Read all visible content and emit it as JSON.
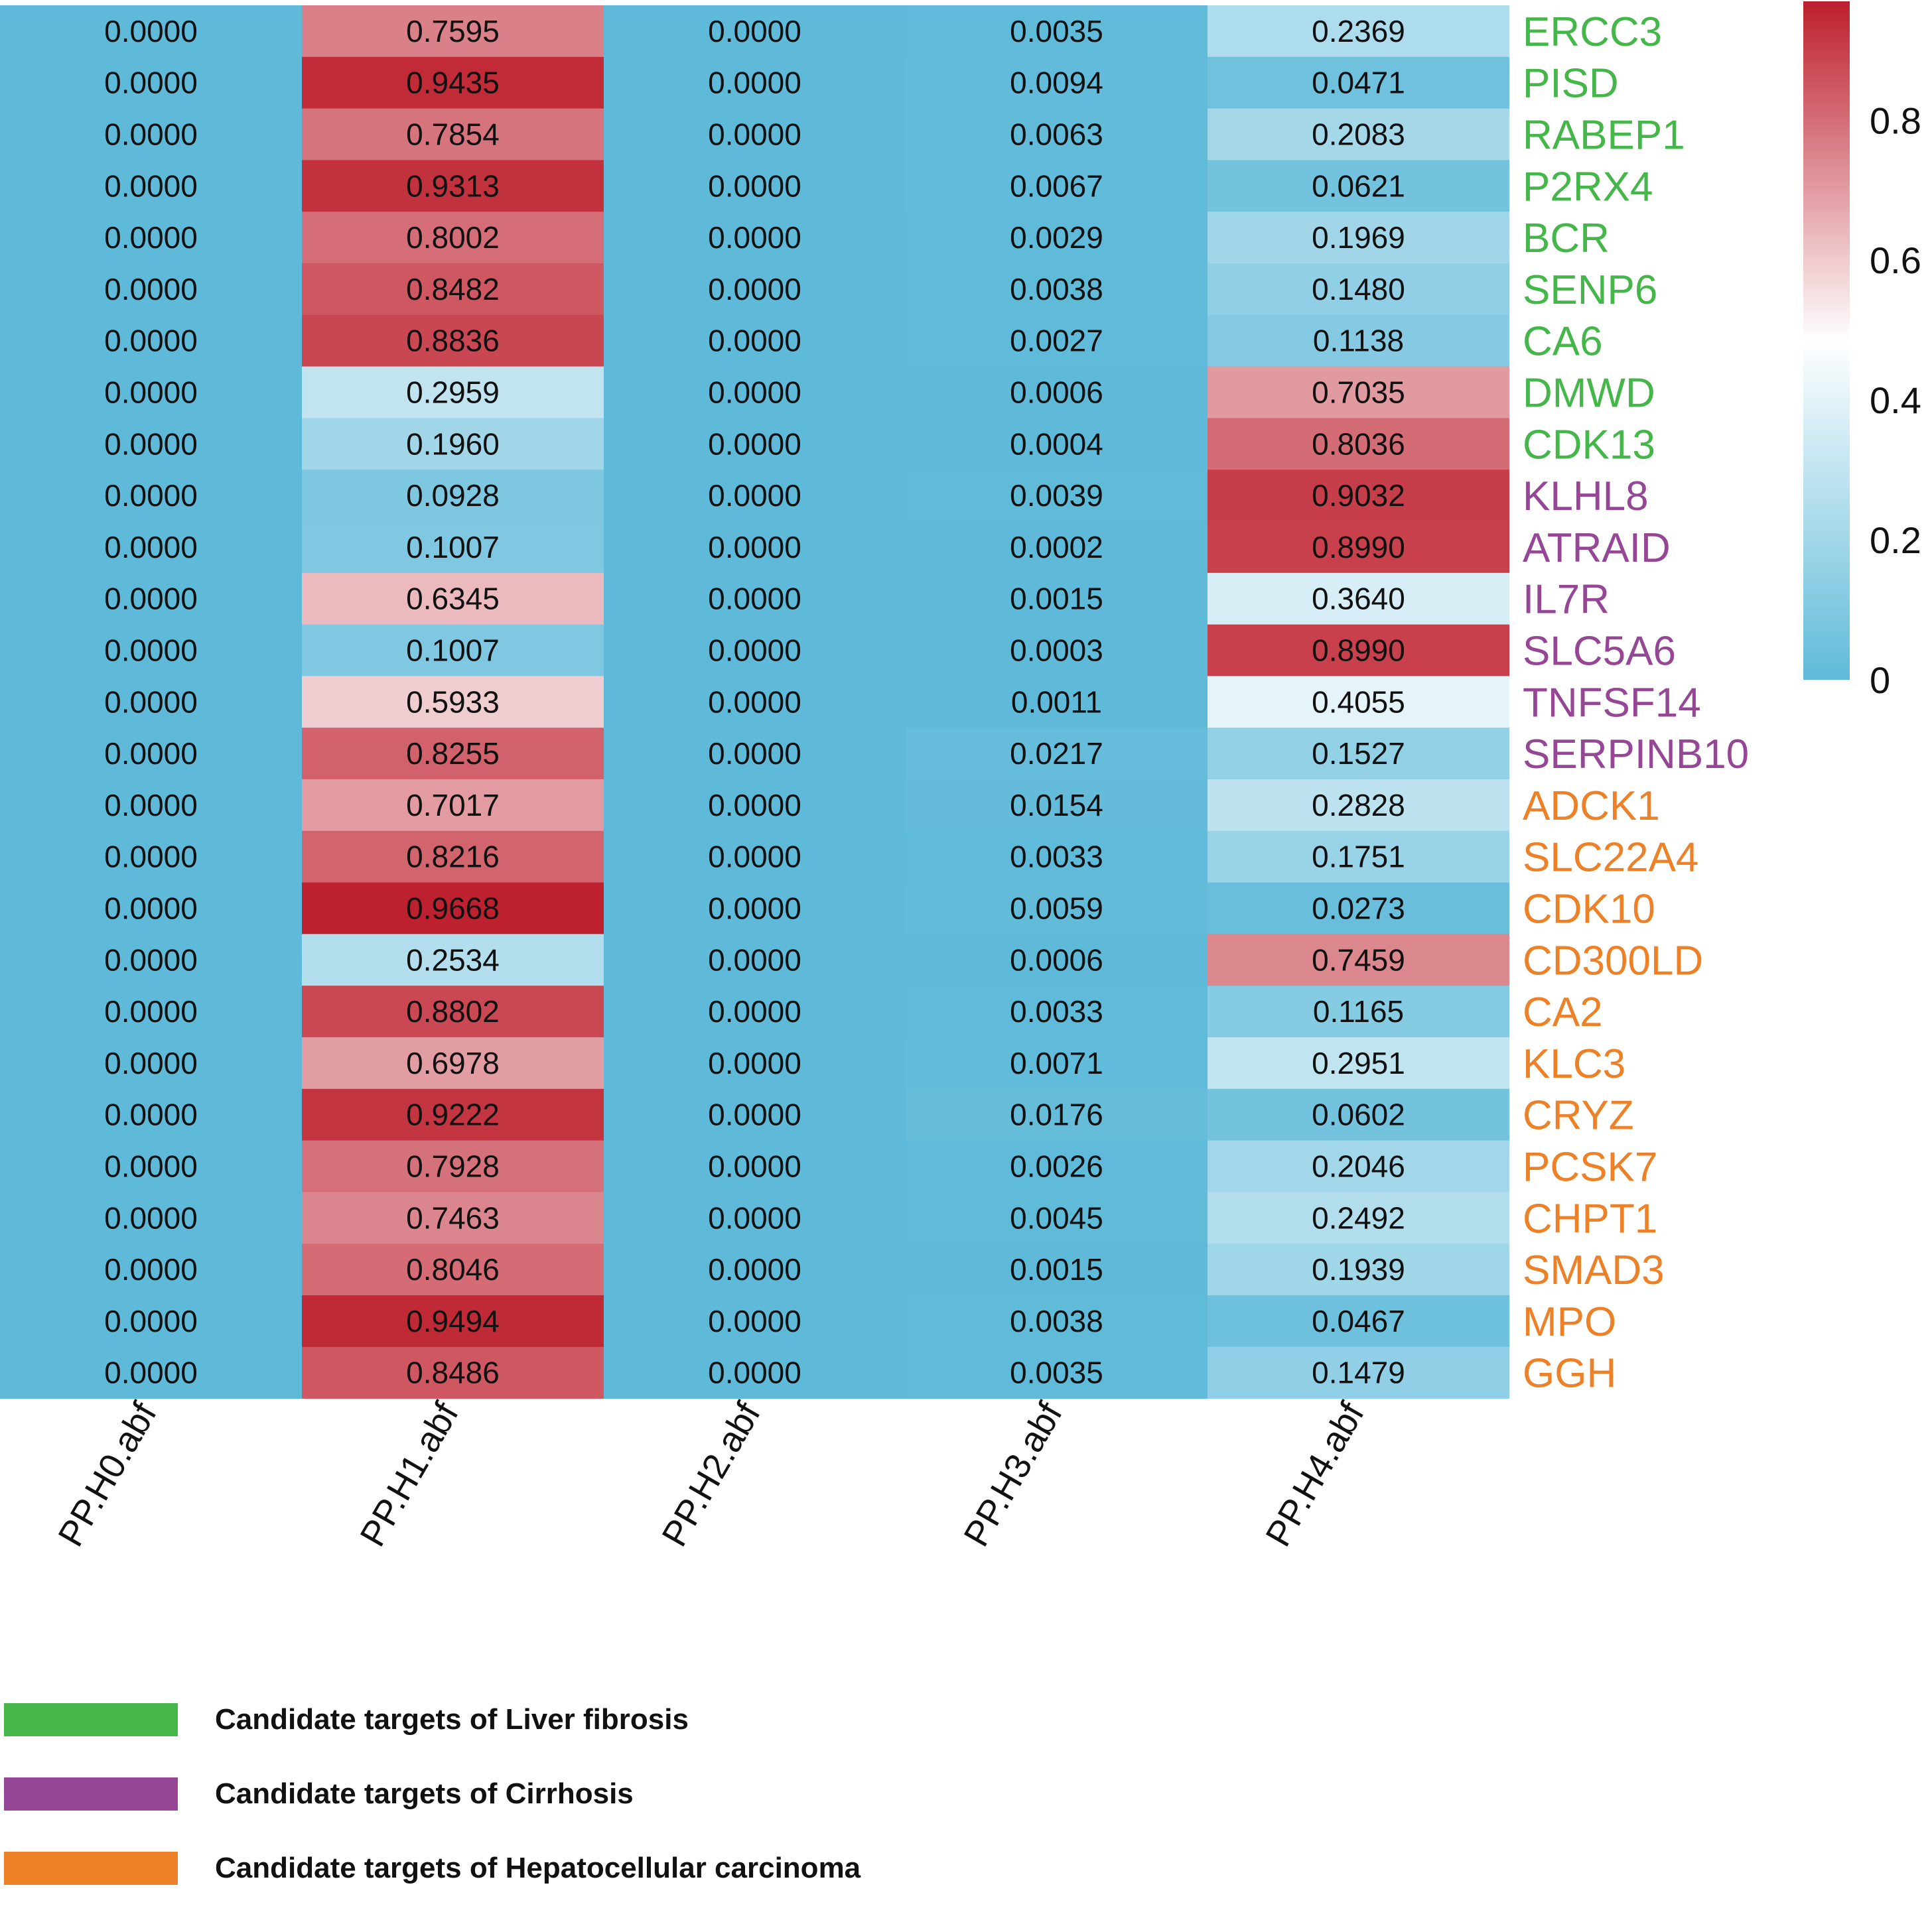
{
  "chart_data": {
    "type": "heatmap",
    "title": "",
    "xlabel": "",
    "ylabel": "",
    "columns": [
      "PP.H0.abf",
      "PP.H1.abf",
      "PP.H2.abf",
      "PP.H3.abf",
      "PP.H4.abf"
    ],
    "rows": [
      {
        "gene": "ERCC3",
        "group": "liver_fibrosis",
        "values": [
          0.0,
          0.7595,
          0.0,
          0.0035,
          0.2369
        ]
      },
      {
        "gene": "PISD",
        "group": "liver_fibrosis",
        "values": [
          0.0,
          0.9435,
          0.0,
          0.0094,
          0.0471
        ]
      },
      {
        "gene": "RABEP1",
        "group": "liver_fibrosis",
        "values": [
          0.0,
          0.7854,
          0.0,
          0.0063,
          0.2083
        ]
      },
      {
        "gene": "P2RX4",
        "group": "liver_fibrosis",
        "values": [
          0.0,
          0.9313,
          0.0,
          0.0067,
          0.0621
        ]
      },
      {
        "gene": "BCR",
        "group": "liver_fibrosis",
        "values": [
          0.0,
          0.8002,
          0.0,
          0.0029,
          0.1969
        ]
      },
      {
        "gene": "SENP6",
        "group": "liver_fibrosis",
        "values": [
          0.0,
          0.8482,
          0.0,
          0.0038,
          0.148
        ]
      },
      {
        "gene": "CA6",
        "group": "liver_fibrosis",
        "values": [
          0.0,
          0.8836,
          0.0,
          0.0027,
          0.1138
        ]
      },
      {
        "gene": "DMWD",
        "group": "liver_fibrosis",
        "values": [
          0.0,
          0.2959,
          0.0,
          0.0006,
          0.7035
        ]
      },
      {
        "gene": "CDK13",
        "group": "liver_fibrosis",
        "values": [
          0.0,
          0.196,
          0.0,
          0.0004,
          0.8036
        ]
      },
      {
        "gene": "KLHL8",
        "group": "cirrhosis",
        "values": [
          0.0,
          0.0928,
          0.0,
          0.0039,
          0.9032
        ]
      },
      {
        "gene": "ATRAID",
        "group": "cirrhosis",
        "values": [
          0.0,
          0.1007,
          0.0,
          0.0002,
          0.899
        ]
      },
      {
        "gene": "IL7R",
        "group": "cirrhosis",
        "values": [
          0.0,
          0.6345,
          0.0,
          0.0015,
          0.364
        ]
      },
      {
        "gene": "SLC5A6",
        "group": "cirrhosis",
        "values": [
          0.0,
          0.1007,
          0.0,
          0.0003,
          0.899
        ]
      },
      {
        "gene": "TNFSF14",
        "group": "cirrhosis",
        "values": [
          0.0,
          0.5933,
          0.0,
          0.0011,
          0.4055
        ]
      },
      {
        "gene": "SERPINB10",
        "group": "cirrhosis",
        "values": [
          0.0,
          0.8255,
          0.0,
          0.0217,
          0.1527
        ]
      },
      {
        "gene": "ADCK1",
        "group": "hcc",
        "values": [
          0.0,
          0.7017,
          0.0,
          0.0154,
          0.2828
        ]
      },
      {
        "gene": "SLC22A4",
        "group": "hcc",
        "values": [
          0.0,
          0.8216,
          0.0,
          0.0033,
          0.1751
        ]
      },
      {
        "gene": "CDK10",
        "group": "hcc",
        "values": [
          0.0,
          0.9668,
          0.0,
          0.0059,
          0.0273
        ]
      },
      {
        "gene": "CD300LD",
        "group": "hcc",
        "values": [
          0.0,
          0.2534,
          0.0,
          0.0006,
          0.7459
        ]
      },
      {
        "gene": "CA2",
        "group": "hcc",
        "values": [
          0.0,
          0.8802,
          0.0,
          0.0033,
          0.1165
        ]
      },
      {
        "gene": "KLC3",
        "group": "hcc",
        "values": [
          0.0,
          0.6978,
          0.0,
          0.0071,
          0.2951
        ]
      },
      {
        "gene": "CRYZ",
        "group": "hcc",
        "values": [
          0.0,
          0.9222,
          0.0,
          0.0176,
          0.0602
        ]
      },
      {
        "gene": "PCSK7",
        "group": "hcc",
        "values": [
          0.0,
          0.7928,
          0.0,
          0.0026,
          0.2046
        ]
      },
      {
        "gene": "CHPT1",
        "group": "hcc",
        "values": [
          0.0,
          0.7463,
          0.0,
          0.0045,
          0.2492
        ]
      },
      {
        "gene": "SMAD3",
        "group": "hcc",
        "values": [
          0.0,
          0.8046,
          0.0,
          0.0015,
          0.1939
        ]
      },
      {
        "gene": "MPO",
        "group": "hcc",
        "values": [
          0.0,
          0.9494,
          0.0,
          0.0038,
          0.0467
        ]
      },
      {
        "gene": "GGH",
        "group": "hcc",
        "values": [
          0.0,
          0.8486,
          0.0,
          0.0035,
          0.1479
        ]
      }
    ],
    "colorbar": {
      "ticks": [
        "0",
        "0.2",
        "0.4",
        "0.6",
        "0.8"
      ],
      "tick_values": [
        0,
        0.2,
        0.4,
        0.6,
        0.8
      ],
      "range": [
        0,
        0.97
      ],
      "low_color": "#5fbad9",
      "mid_color": "#ffffff",
      "high_color": "#bd1f2d",
      "midpoint": 0.485
    },
    "legend": [
      {
        "group": "liver_fibrosis",
        "label": "Candidate targets of Liver fibrosis",
        "color": "#45b649"
      },
      {
        "group": "cirrhosis",
        "label": "Candidate targets of Cirrhosis",
        "color": "#954796"
      },
      {
        "group": "hcc",
        "label": "Candidate targets of Hepatocellular carcinoma",
        "color": "#ec8127"
      }
    ],
    "legend_placement": "bottom-left",
    "colorbar_placement": "top-right"
  }
}
